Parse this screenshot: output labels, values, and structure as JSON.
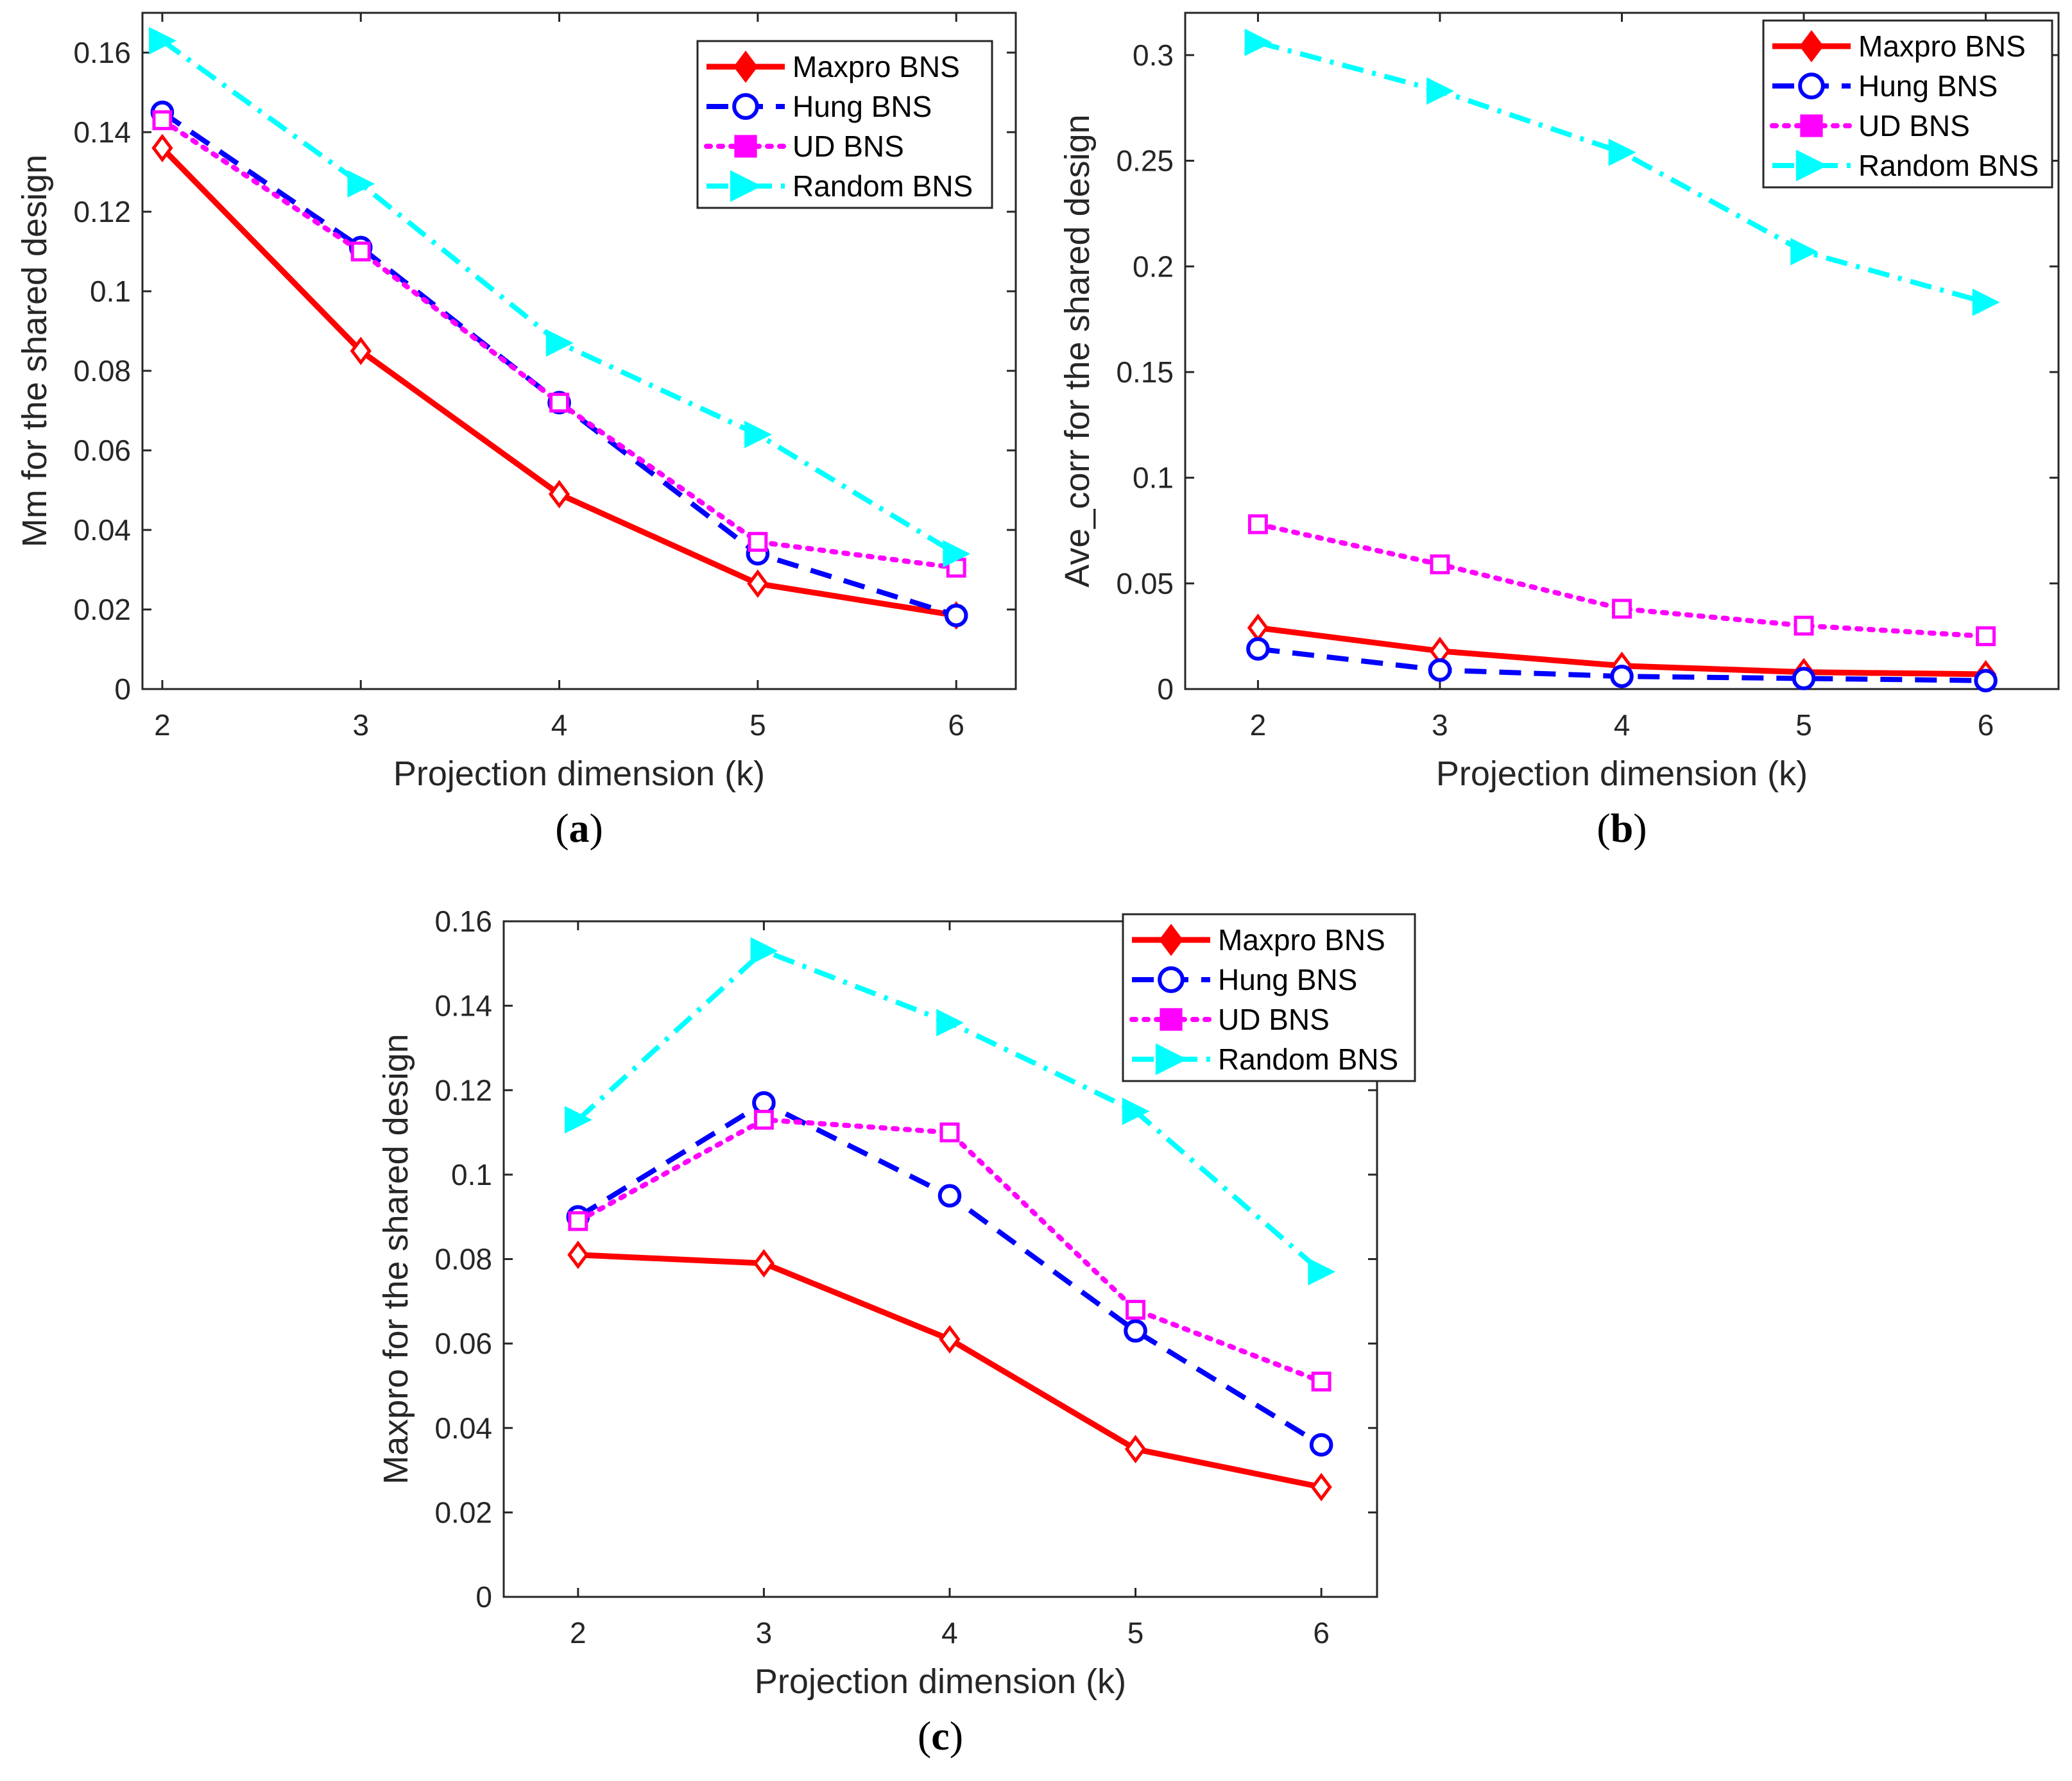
{
  "figure": {
    "panels": [
      "a",
      "b",
      "c"
    ]
  },
  "chart_data": [
    {
      "type": "line",
      "panel_caption": "a",
      "xlabel": "Projection dimension (k)",
      "ylabel": "Mm for the shared design",
      "x": [
        2,
        3,
        4,
        5,
        6
      ],
      "xlim": [
        1.9,
        6.3
      ],
      "ylim": [
        0,
        0.17
      ],
      "xticks": [
        "2",
        "3",
        "4",
        "5",
        "6"
      ],
      "yticks": [
        "0",
        "0.02",
        "0.04",
        "0.06",
        "0.08",
        "0.1",
        "0.12",
        "0.14",
        "0.16"
      ],
      "ytick_values": [
        0,
        0.02,
        0.04,
        0.06,
        0.08,
        0.1,
        0.12,
        0.14,
        0.16
      ],
      "legend_position": "top-right",
      "series": [
        {
          "name": "Maxpro BNS",
          "color": "#ff0000",
          "line": "solid",
          "marker": "diamond",
          "values": [
            0.136,
            0.085,
            0.049,
            0.0265,
            0.0185
          ]
        },
        {
          "name": "Hung BNS",
          "color": "#0000ff",
          "line": "dashed",
          "marker": "circle",
          "values": [
            0.145,
            0.111,
            0.072,
            0.034,
            0.0185
          ]
        },
        {
          "name": "UD BNS",
          "color": "#ff00ff",
          "line": "dotted",
          "marker": "square",
          "values": [
            0.143,
            0.11,
            0.072,
            0.037,
            0.0305
          ]
        },
        {
          "name": "Random BNS",
          "color": "#00ffff",
          "line": "dashdot",
          "marker": "triangle-right",
          "values": [
            0.163,
            0.127,
            0.087,
            0.064,
            0.034
          ]
        }
      ]
    },
    {
      "type": "line",
      "panel_caption": "b",
      "xlabel": "Projection dimension (k)",
      "ylabel": "Ave_corr for the shared design",
      "x": [
        2,
        3,
        4,
        5,
        6
      ],
      "xlim": [
        1.6,
        6.4
      ],
      "ylim": [
        0,
        0.32
      ],
      "xticks": [
        "2",
        "3",
        "4",
        "5",
        "6"
      ],
      "yticks": [
        "0",
        "0.05",
        "0.1",
        "0.15",
        "0.2",
        "0.25",
        "0.3"
      ],
      "ytick_values": [
        0,
        0.05,
        0.1,
        0.15,
        0.2,
        0.25,
        0.3
      ],
      "legend_position": "top-right",
      "series": [
        {
          "name": "Maxpro BNS",
          "color": "#ff0000",
          "line": "solid",
          "marker": "diamond",
          "values": [
            0.029,
            0.018,
            0.011,
            0.008,
            0.007
          ]
        },
        {
          "name": "Hung BNS",
          "color": "#0000ff",
          "line": "dashed",
          "marker": "circle",
          "values": [
            0.019,
            0.009,
            0.006,
            0.005,
            0.004
          ]
        },
        {
          "name": "UD BNS",
          "color": "#ff00ff",
          "line": "dotted",
          "marker": "square",
          "values": [
            0.078,
            0.059,
            0.038,
            0.03,
            0.025
          ]
        },
        {
          "name": "Random BNS",
          "color": "#00ffff",
          "line": "dashdot",
          "marker": "triangle-right",
          "values": [
            0.306,
            0.283,
            0.254,
            0.207,
            0.183
          ]
        }
      ]
    },
    {
      "type": "line",
      "panel_caption": "c",
      "xlabel": "Projection dimension (k)",
      "ylabel": "Maxpro for the shared design",
      "x": [
        2,
        3,
        4,
        5,
        6
      ],
      "xlim": [
        1.6,
        6.3
      ],
      "ylim": [
        0,
        0.16
      ],
      "xticks": [
        "2",
        "3",
        "4",
        "5",
        "6"
      ],
      "yticks": [
        "0",
        "0.02",
        "0.04",
        "0.06",
        "0.08",
        "0.1",
        "0.12",
        "0.14",
        "0.16"
      ],
      "ytick_values": [
        0,
        0.02,
        0.04,
        0.06,
        0.08,
        0.1,
        0.12,
        0.14,
        0.16
      ],
      "legend_position": "top-right",
      "series": [
        {
          "name": "Maxpro BNS",
          "color": "#ff0000",
          "line": "solid",
          "marker": "diamond",
          "values": [
            0.081,
            0.079,
            0.061,
            0.035,
            0.026
          ]
        },
        {
          "name": "Hung BNS",
          "color": "#0000ff",
          "line": "dashed",
          "marker": "circle",
          "values": [
            0.09,
            0.117,
            0.095,
            0.063,
            0.036
          ]
        },
        {
          "name": "UD BNS",
          "color": "#ff00ff",
          "line": "dotted",
          "marker": "square",
          "values": [
            0.089,
            0.113,
            0.11,
            0.068,
            0.051
          ]
        },
        {
          "name": "Random BNS",
          "color": "#00ffff",
          "line": "dashdot",
          "marker": "triangle-right",
          "values": [
            0.113,
            0.153,
            0.136,
            0.115,
            0.077
          ]
        }
      ]
    }
  ]
}
